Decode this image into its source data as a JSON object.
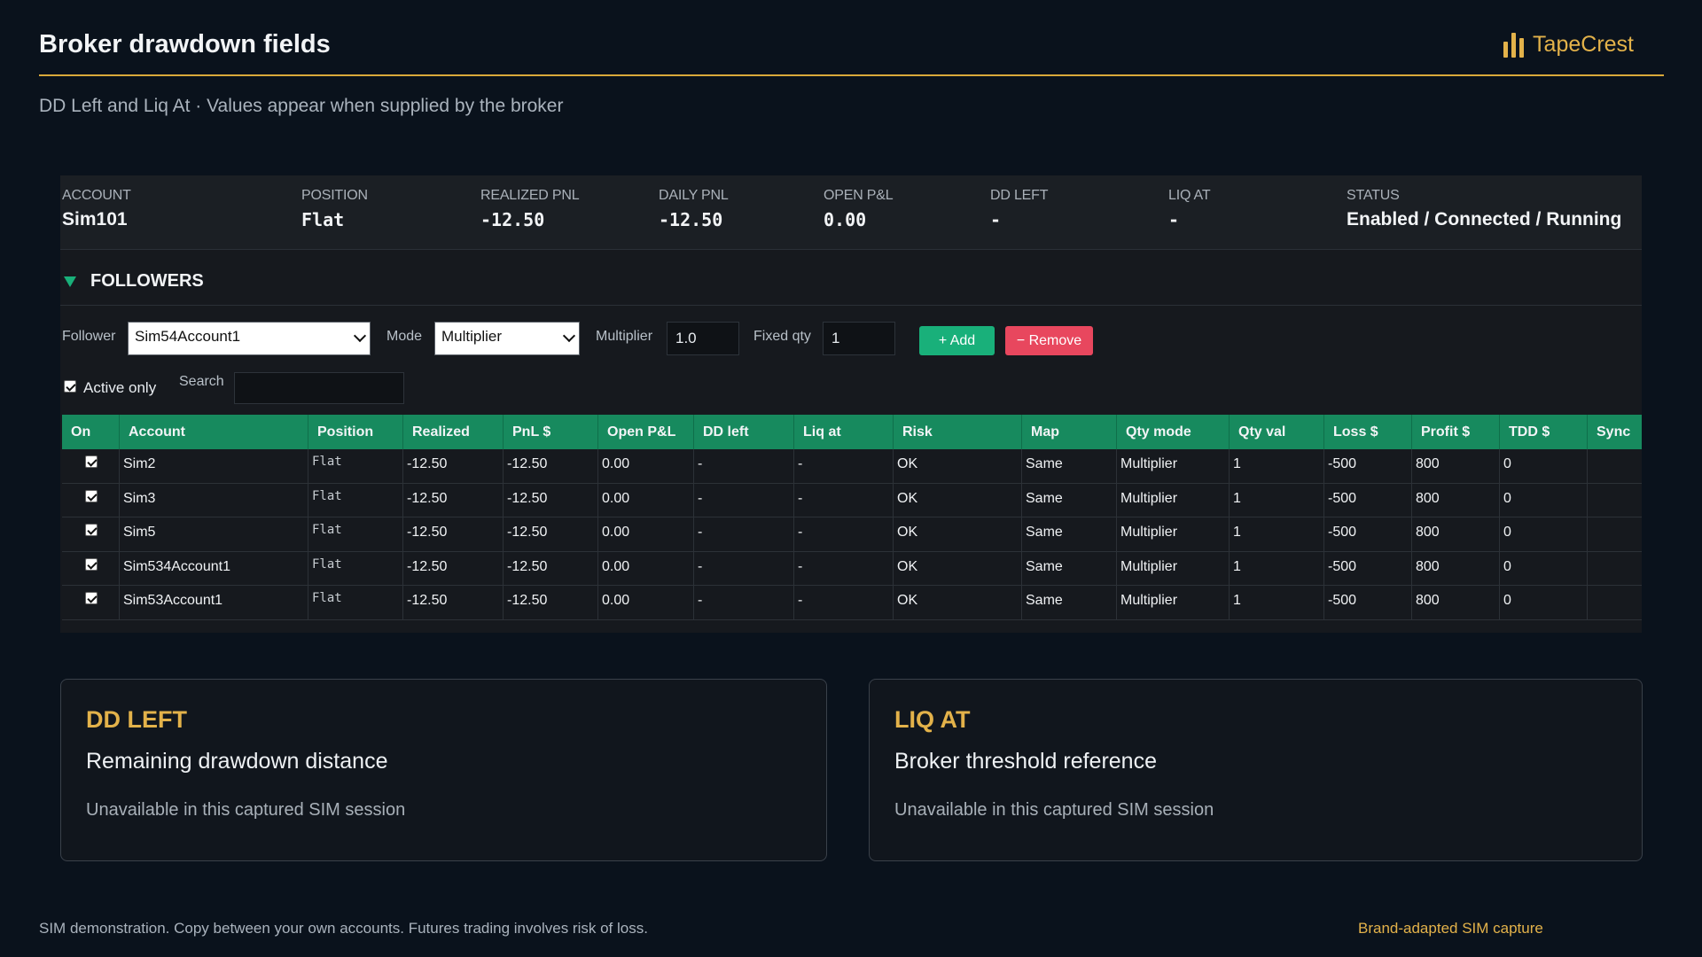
{
  "header": {
    "title": "Broker drawdown fields",
    "brand": "TapeCrest",
    "subtitle": "DD Left and Liq At · Values appear when supplied by the broker"
  },
  "account": {
    "account_label": "ACCOUNT",
    "account_value": "Sim101",
    "position_label": "POSITION",
    "position_value": "Flat",
    "realized_label": "REALIZED PNL",
    "realized_value": "-12.50",
    "daily_label": "DAILY PNL",
    "daily_value": "-12.50",
    "open_label": "OPEN P&L",
    "open_value": "0.00",
    "ddleft_label": "DD LEFT",
    "ddleft_value": "-",
    "liqat_label": "LIQ AT",
    "liqat_value": "-",
    "status_label": "STATUS",
    "status_value": "Enabled / Connected / Running"
  },
  "followers": {
    "title": "FOLLOWERS",
    "follower_label": "Follower",
    "follower_value": "Sim54Account1",
    "mode_label": "Mode",
    "mode_value": "Multiplier",
    "multiplier_label": "Multiplier",
    "multiplier_value": "1.0",
    "fixed_qty_label": "Fixed qty",
    "fixed_qty_value": "1",
    "add_label": "+ Add",
    "remove_label": "− Remove",
    "active_only_label": "Active only",
    "search_label": "Search",
    "search_value": ""
  },
  "table": {
    "columns": [
      "On",
      "Account",
      "Position",
      "Realized",
      "PnL $",
      "Open P&L",
      "DD left",
      "Liq at",
      "Risk",
      "Map",
      "Qty mode",
      "Qty val",
      "Loss $",
      "Profit $",
      "TDD $",
      "Sync"
    ],
    "rows": [
      {
        "account": "Sim2",
        "position": "Flat",
        "realized": "-12.50",
        "pnl": "-12.50",
        "open": "0.00",
        "ddleft": "-",
        "liqat": "-",
        "risk": "OK",
        "map": "Same",
        "qtymode": "Multiplier",
        "qtyval": "1",
        "loss": "-500",
        "profit": "800",
        "tdd": "0",
        "sync": ""
      },
      {
        "account": "Sim3",
        "position": "Flat",
        "realized": "-12.50",
        "pnl": "-12.50",
        "open": "0.00",
        "ddleft": "-",
        "liqat": "-",
        "risk": "OK",
        "map": "Same",
        "qtymode": "Multiplier",
        "qtyval": "1",
        "loss": "-500",
        "profit": "800",
        "tdd": "0",
        "sync": ""
      },
      {
        "account": "Sim5",
        "position": "Flat",
        "realized": "-12.50",
        "pnl": "-12.50",
        "open": "0.00",
        "ddleft": "-",
        "liqat": "-",
        "risk": "OK",
        "map": "Same",
        "qtymode": "Multiplier",
        "qtyval": "1",
        "loss": "-500",
        "profit": "800",
        "tdd": "0",
        "sync": ""
      },
      {
        "account": "Sim534Account1",
        "position": "Flat",
        "realized": "-12.50",
        "pnl": "-12.50",
        "open": "0.00",
        "ddleft": "-",
        "liqat": "-",
        "risk": "OK",
        "map": "Same",
        "qtymode": "Multiplier",
        "qtyval": "1",
        "loss": "-500",
        "profit": "800",
        "tdd": "0",
        "sync": ""
      },
      {
        "account": "Sim53Account1",
        "position": "Flat",
        "realized": "-12.50",
        "pnl": "-12.50",
        "open": "0.00",
        "ddleft": "-",
        "liqat": "-",
        "risk": "OK",
        "map": "Same",
        "qtymode": "Multiplier",
        "qtyval": "1",
        "loss": "-500",
        "profit": "800",
        "tdd": "0",
        "sync": ""
      }
    ]
  },
  "cards": {
    "dd_title": "DD LEFT",
    "dd_sub": "Remaining drawdown distance",
    "dd_note": "Unavailable in this captured SIM session",
    "liq_title": "LIQ AT",
    "liq_sub": "Broker threshold reference",
    "liq_note": "Unavailable in this captured SIM session"
  },
  "footer": {
    "disclaimer": "SIM demonstration. Copy between your own accounts. Futures trading involves risk of loss.",
    "tag": "Brand-adapted SIM capture"
  },
  "colors": {
    "accent_gold": "#e3b24a",
    "accent_green": "#19b07a",
    "remove_red": "#e8475e",
    "background": "#0a121c"
  },
  "icons": {
    "brand": "bar-chart-icon",
    "collapse": "triangle-down-icon",
    "select": "chevron-down-icon",
    "check": "checkbox-checked-icon"
  }
}
